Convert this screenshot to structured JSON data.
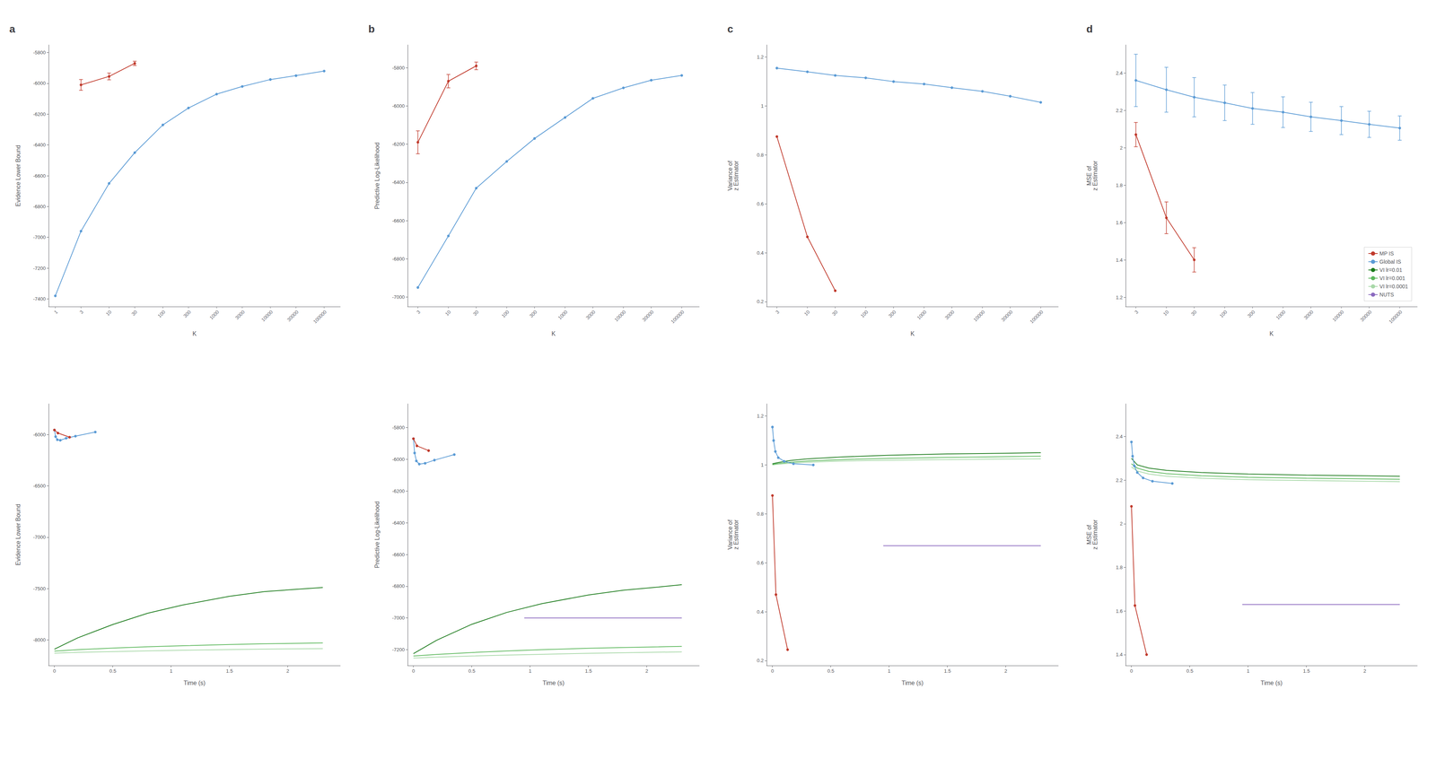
{
  "chart_data": [
    {
      "type": "line",
      "title": "a",
      "xlabel": "K",
      "ylabel": "Evidence Lower Bound",
      "log": "x",
      "grid": false,
      "xlim": [
        0.75,
        200000
      ],
      "xticks": [
        1,
        3,
        10,
        30,
        100,
        300,
        1000,
        3000,
        10000,
        30000,
        100000
      ],
      "ylim": [
        -7450,
        -5750
      ],
      "yticks": [
        -7400,
        -7200,
        -7000,
        -6800,
        -6600,
        -6400,
        -6200,
        -6000,
        -5800
      ],
      "series": [
        {
          "name": "Global IS",
          "color": "#5b9bd5",
          "marker": "o",
          "x": [
            1,
            3,
            10,
            30,
            100,
            300,
            1000,
            3000,
            10000,
            30000,
            100000
          ],
          "values": [
            -7380,
            -6960,
            -6650,
            -6450,
            -6270,
            -6160,
            -6070,
            -6020,
            -5975,
            -5950,
            -5920
          ]
        },
        {
          "name": "MP IS",
          "color": "#c0392b",
          "marker": "o",
          "x": [
            3,
            10,
            30
          ],
          "values": [
            -6010,
            -5955,
            -5870
          ],
          "errors": [
            35,
            22,
            14
          ]
        }
      ]
    },
    {
      "type": "line",
      "title": "b",
      "xlabel": "K",
      "ylabel": "Predictive Log-Likelihood",
      "log": "x",
      "grid": false,
      "xlim": [
        2,
        200000
      ],
      "xticks": [
        3,
        10,
        30,
        100,
        300,
        1000,
        3000,
        10000,
        30000,
        100000
      ],
      "ylim": [
        -7050,
        -5680
      ],
      "yticks": [
        -7000,
        -6800,
        -6600,
        -6400,
        -6200,
        -6000,
        -5800
      ],
      "series": [
        {
          "name": "Global IS",
          "color": "#5b9bd5",
          "marker": "o",
          "x": [
            3,
            10,
            30,
            100,
            300,
            1000,
            3000,
            10000,
            30000,
            100000
          ],
          "values": [
            -6950,
            -6680,
            -6430,
            -6290,
            -6170,
            -6060,
            -5960,
            -5905,
            -5865,
            -5840
          ]
        },
        {
          "name": "MP IS",
          "color": "#c0392b",
          "marker": "o",
          "x": [
            3,
            10,
            30
          ],
          "values": [
            -6190,
            -5870,
            -5790
          ],
          "errors": [
            60,
            35,
            20
          ]
        }
      ]
    },
    {
      "type": "line",
      "title": "c",
      "xlabel": "K",
      "ylabel": "Variance of\nz Estimator",
      "log": "x",
      "grid": false,
      "xlim": [
        2,
        200000
      ],
      "xticks": [
        3,
        10,
        30,
        100,
        300,
        1000,
        3000,
        10000,
        30000,
        100000
      ],
      "ylim": [
        0.18,
        1.25
      ],
      "yticks": [
        0.2,
        0.4,
        0.6,
        0.8,
        1,
        1.2
      ],
      "series": [
        {
          "name": "Global IS",
          "color": "#5b9bd5",
          "marker": "o",
          "x": [
            3,
            10,
            30,
            100,
            300,
            1000,
            3000,
            10000,
            30000,
            100000
          ],
          "values": [
            1.155,
            1.14,
            1.125,
            1.115,
            1.1,
            1.09,
            1.075,
            1.06,
            1.04,
            1.015
          ]
        },
        {
          "name": "MP IS",
          "color": "#c0392b",
          "marker": "o",
          "x": [
            3,
            10,
            30
          ],
          "values": [
            0.875,
            0.465,
            0.245
          ]
        }
      ]
    },
    {
      "type": "line",
      "title": "d",
      "xlabel": "K",
      "ylabel": "MSE of\nz Estimator",
      "log": "x",
      "grid": false,
      "legend": "lower right",
      "xlim": [
        2,
        200000
      ],
      "xticks": [
        3,
        10,
        30,
        100,
        300,
        1000,
        3000,
        10000,
        30000,
        100000
      ],
      "ylim": [
        1.15,
        2.55
      ],
      "yticks": [
        1.2,
        1.4,
        1.6,
        1.8,
        2,
        2.2,
        2.4
      ],
      "series": [
        {
          "name": "MP IS",
          "color": "#c0392b",
          "marker": "o",
          "x": [
            3,
            10,
            30
          ],
          "values": [
            2.07,
            1.625,
            1.4
          ],
          "errors": [
            0.065,
            0.085,
            0.065
          ]
        },
        {
          "name": "Global IS",
          "color": "#5b9bd5",
          "marker": "o",
          "x": [
            3,
            10,
            30,
            100,
            300,
            1000,
            3000,
            10000,
            30000,
            100000
          ],
          "values": [
            2.36,
            2.31,
            2.27,
            2.24,
            2.21,
            2.19,
            2.165,
            2.145,
            2.125,
            2.105
          ],
          "errors": [
            0.14,
            0.12,
            0.105,
            0.095,
            0.085,
            0.082,
            0.078,
            0.075,
            0.07,
            0.065
          ]
        },
        {
          "name": "VI lr=0.01",
          "color": "#1a7a1a",
          "marker": "o",
          "x": [],
          "values": []
        },
        {
          "name": "VI lr=0.001",
          "color": "#5cb85c",
          "marker": "o",
          "x": [],
          "values": []
        },
        {
          "name": "VI lr=0.0001",
          "color": "#a8d8a8",
          "marker": "o",
          "x": [],
          "values": []
        },
        {
          "name": "NUTS",
          "color": "#8b6abf",
          "marker": "o",
          "x": [],
          "values": []
        }
      ]
    },
    {
      "type": "line",
      "xlabel": "Time (s)",
      "ylabel": "Evidence Lower Bound",
      "grid": false,
      "xlim": [
        -0.05,
        2.45
      ],
      "xticks": [
        0,
        0.5,
        1,
        1.5,
        2
      ],
      "ylim": [
        -8250,
        -5700
      ],
      "yticks": [
        -8000,
        -7500,
        -7000,
        -6500,
        -6000
      ],
      "series": [
        {
          "name": "MP IS",
          "color": "#c0392b",
          "marker": "o",
          "x": [
            0.0,
            0.03,
            0.13
          ],
          "values": [
            -5955,
            -5985,
            -6025
          ]
        },
        {
          "name": "Global IS",
          "color": "#5b9bd5",
          "marker": "o",
          "x": [
            0.0,
            0.01,
            0.025,
            0.05,
            0.1,
            0.18,
            0.35
          ],
          "values": [
            -5955,
            -6020,
            -6050,
            -6055,
            -6035,
            -6015,
            -5975
          ]
        },
        {
          "name": "VI lr=0.01",
          "color": "#1a7a1a",
          "marker": "none",
          "x": [
            0.0,
            0.2,
            0.5,
            0.8,
            1.1,
            1.5,
            1.8,
            2.1,
            2.3
          ],
          "values": [
            -8090,
            -7980,
            -7850,
            -7740,
            -7660,
            -7575,
            -7530,
            -7505,
            -7490
          ]
        },
        {
          "name": "VI lr=0.001",
          "color": "#5cb85c",
          "marker": "none",
          "x": [
            0.0,
            0.2,
            0.5,
            0.8,
            1.1,
            1.5,
            1.8,
            2.1,
            2.3
          ],
          "values": [
            -8110,
            -8095,
            -8080,
            -8067,
            -8057,
            -8045,
            -8038,
            -8033,
            -8030
          ]
        },
        {
          "name": "VI lr=0.0001",
          "color": "#a8d8a8",
          "marker": "none",
          "x": [
            0.0,
            0.2,
            0.5,
            0.8,
            1.1,
            1.5,
            1.8,
            2.1,
            2.3
          ],
          "values": [
            -8130,
            -8122,
            -8114,
            -8107,
            -8101,
            -8094,
            -8090,
            -8087,
            -8085
          ]
        }
      ]
    },
    {
      "type": "line",
      "xlabel": "Time (s)",
      "ylabel": "Predictive Log-Likelihood",
      "grid": false,
      "xlim": [
        -0.05,
        2.45
      ],
      "xticks": [
        0,
        0.5,
        1,
        1.5,
        2
      ],
      "ylim": [
        -7300,
        -5650
      ],
      "yticks": [
        -7200,
        -7000,
        -6800,
        -6600,
        -6400,
        -6200,
        -6000,
        -5800
      ],
      "series": [
        {
          "name": "MP IS",
          "color": "#c0392b",
          "marker": "o",
          "x": [
            0.0,
            0.03,
            0.13
          ],
          "values": [
            -5870,
            -5915,
            -5945
          ]
        },
        {
          "name": "Global IS",
          "color": "#5b9bd5",
          "marker": "o",
          "x": [
            0.0,
            0.01,
            0.025,
            0.05,
            0.1,
            0.18,
            0.35
          ],
          "values": [
            -5870,
            -5960,
            -6010,
            -6030,
            -6025,
            -6005,
            -5970
          ]
        },
        {
          "name": "VI lr=0.01",
          "color": "#1a7a1a",
          "marker": "none",
          "x": [
            0.0,
            0.2,
            0.5,
            0.8,
            1.1,
            1.5,
            1.8,
            2.1,
            2.3
          ],
          "values": [
            -7225,
            -7140,
            -7040,
            -6965,
            -6910,
            -6855,
            -6825,
            -6805,
            -6790
          ]
        },
        {
          "name": "VI lr=0.001",
          "color": "#5cb85c",
          "marker": "none",
          "x": [
            0.0,
            0.2,
            0.5,
            0.8,
            1.1,
            1.5,
            1.8,
            2.1,
            2.3
          ],
          "values": [
            -7240,
            -7230,
            -7218,
            -7208,
            -7200,
            -7191,
            -7186,
            -7182,
            -7179
          ]
        },
        {
          "name": "VI lr=0.0001",
          "color": "#a8d8a8",
          "marker": "none",
          "x": [
            0.0,
            0.2,
            0.5,
            0.8,
            1.1,
            1.5,
            1.8,
            2.1,
            2.3
          ],
          "values": [
            -7252,
            -7247,
            -7240,
            -7234,
            -7229,
            -7223,
            -7219,
            -7216,
            -7214
          ]
        },
        {
          "name": "NUTS",
          "color": "#8b6abf",
          "marker": "none",
          "x": [
            0.95,
            2.3
          ],
          "values": [
            -7000,
            -7000
          ]
        }
      ]
    },
    {
      "type": "line",
      "xlabel": "Time (s)",
      "ylabel": "Variance of\nz Estimator",
      "grid": false,
      "xlim": [
        -0.05,
        2.45
      ],
      "xticks": [
        0,
        0.5,
        1,
        1.5,
        2
      ],
      "ylim": [
        0.18,
        1.25
      ],
      "yticks": [
        0.2,
        0.4,
        0.6,
        0.8,
        1,
        1.2
      ],
      "series": [
        {
          "name": "MP IS",
          "color": "#c0392b",
          "marker": "o",
          "x": [
            0.0,
            0.03,
            0.13
          ],
          "values": [
            0.875,
            0.47,
            0.245
          ]
        },
        {
          "name": "Global IS",
          "color": "#5b9bd5",
          "marker": "o",
          "x": [
            0.0,
            0.01,
            0.025,
            0.05,
            0.1,
            0.18,
            0.35
          ],
          "values": [
            1.155,
            1.1,
            1.055,
            1.03,
            1.015,
            1.005,
            1.0
          ]
        },
        {
          "name": "VI lr=0.01",
          "color": "#1a7a1a",
          "marker": "none",
          "x": [
            0.0,
            0.05,
            0.15,
            0.3,
            0.6,
            1.0,
            1.5,
            2.0,
            2.3
          ],
          "values": [
            1.005,
            1.01,
            1.018,
            1.025,
            1.033,
            1.04,
            1.045,
            1.048,
            1.05
          ]
        },
        {
          "name": "VI lr=0.001",
          "color": "#5cb85c",
          "marker": "none",
          "x": [
            0.0,
            0.05,
            0.15,
            0.3,
            0.6,
            1.0,
            1.5,
            2.0,
            2.3
          ],
          "values": [
            1.002,
            1.006,
            1.011,
            1.016,
            1.022,
            1.027,
            1.031,
            1.034,
            1.036
          ]
        },
        {
          "name": "VI lr=0.0001",
          "color": "#a8d8a8",
          "marker": "none",
          "x": [
            0.0,
            0.05,
            0.15,
            0.3,
            0.6,
            1.0,
            1.5,
            2.0,
            2.3
          ],
          "values": [
            1.0,
            1.003,
            1.007,
            1.011,
            1.016,
            1.019,
            1.022,
            1.024,
            1.025
          ]
        },
        {
          "name": "NUTS",
          "color": "#8b6abf",
          "marker": "none",
          "x": [
            0.95,
            2.3
          ],
          "values": [
            0.67,
            0.67
          ]
        }
      ]
    },
    {
      "type": "line",
      "xlabel": "Time (s)",
      "ylabel": "MSE of\nz Estimator",
      "grid": false,
      "xlim": [
        -0.05,
        2.45
      ],
      "xticks": [
        0,
        0.5,
        1,
        1.5,
        2
      ],
      "ylim": [
        1.35,
        2.55
      ],
      "yticks": [
        1.4,
        1.6,
        1.8,
        2,
        2.2,
        2.4
      ],
      "series": [
        {
          "name": "MP IS",
          "color": "#c0392b",
          "marker": "o",
          "x": [
            0.0,
            0.03,
            0.13
          ],
          "values": [
            2.08,
            1.625,
            1.4
          ]
        },
        {
          "name": "Global IS",
          "color": "#5b9bd5",
          "marker": "o",
          "x": [
            0.0,
            0.01,
            0.025,
            0.05,
            0.1,
            0.18,
            0.35
          ],
          "values": [
            2.375,
            2.31,
            2.265,
            2.235,
            2.21,
            2.195,
            2.185
          ]
        },
        {
          "name": "VI lr=0.01",
          "color": "#1a7a1a",
          "marker": "none",
          "x": [
            0.0,
            0.05,
            0.15,
            0.3,
            0.6,
            1.0,
            1.5,
            2.0,
            2.3
          ],
          "values": [
            2.3,
            2.27,
            2.255,
            2.245,
            2.235,
            2.228,
            2.223,
            2.22,
            2.218
          ]
        },
        {
          "name": "VI lr=0.001",
          "color": "#5cb85c",
          "marker": "none",
          "x": [
            0.0,
            0.05,
            0.15,
            0.3,
            0.6,
            1.0,
            1.5,
            2.0,
            2.3
          ],
          "values": [
            2.275,
            2.255,
            2.24,
            2.23,
            2.22,
            2.213,
            2.209,
            2.206,
            2.204
          ]
        },
        {
          "name": "VI lr=0.0001",
          "color": "#a8d8a8",
          "marker": "none",
          "x": [
            0.0,
            0.05,
            0.15,
            0.3,
            0.6,
            1.0,
            1.5,
            2.0,
            2.3
          ],
          "values": [
            2.26,
            2.242,
            2.228,
            2.218,
            2.209,
            2.202,
            2.198,
            2.195,
            2.193
          ]
        },
        {
          "name": "NUTS",
          "color": "#8b6abf",
          "marker": "none",
          "x": [
            0.95,
            2.3
          ],
          "values": [
            1.63,
            1.63
          ]
        }
      ]
    }
  ]
}
